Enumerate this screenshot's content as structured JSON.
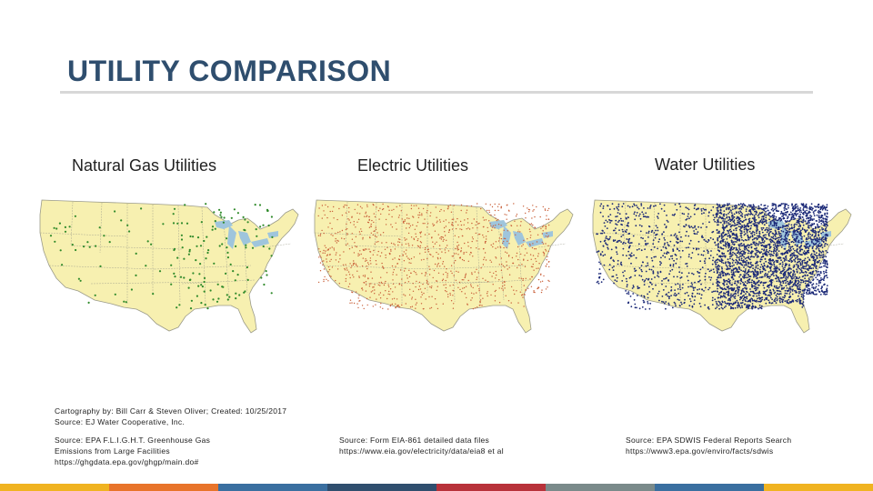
{
  "slide": {
    "title": "UTILITY COMPARISON"
  },
  "maps": [
    {
      "heading": "Natural Gas Utilities",
      "dot_color": "#2f8a2a",
      "dot_count": 170
    },
    {
      "heading": "Electric Utilities",
      "dot_color": "#c9603a",
      "dot_count": 1100
    },
    {
      "heading": "Water Utilities",
      "dot_color": "#1c2a78",
      "dot_count": 3600
    }
  ],
  "colors": {
    "land": "#f7f0b0",
    "border": "#9b9b8a",
    "lakes": "#9fc5dc",
    "title": "#2f4e6e"
  },
  "credits": {
    "cartography_line1": "Cartography by: Bill Carr & Steven Oliver; Created: 10/25/2017",
    "cartography_line2": "Source: EJ Water Cooperative, Inc.",
    "gas_source_1": "Source: EPA F.L.I.G.H.T. Greenhouse Gas",
    "gas_source_2": "Emissions from Large Facilities",
    "gas_source_3": "https://ghgdata.epa.gov/ghgp/main.do#",
    "electric_source_1": "Source: Form EIA-861 detailed data files",
    "electric_source_2": "https://www.eia.gov/electricity/data/eia8  et al",
    "water_source_1": "Source: EPA SDWIS Federal Reports Search",
    "water_source_2": "https://www3.epa.gov/enviro/facts/sdwis"
  },
  "footer_colors": [
    "#f0b321",
    "#e8742a",
    "#3a6fa0",
    "#2f4e6e",
    "#b8323a",
    "#7a8a8a",
    "#3a6fa0",
    "#f0b321"
  ]
}
